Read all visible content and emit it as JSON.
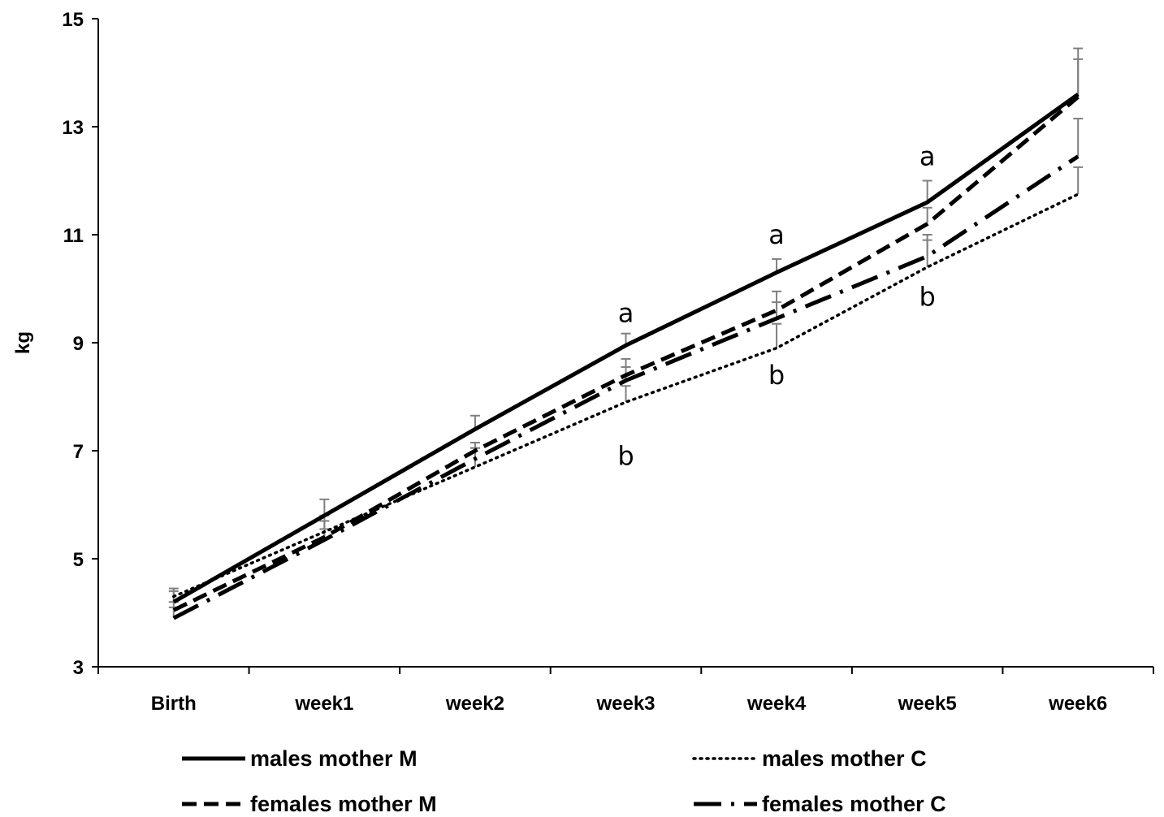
{
  "chart_data": {
    "type": "line",
    "categories": [
      "Birth",
      "week1",
      "week2",
      "week3",
      "week4",
      "week5",
      "week6"
    ],
    "ylabel": "kg",
    "xlabel": "",
    "ylim": [
      3,
      15
    ],
    "yticks": [
      3,
      5,
      7,
      9,
      11,
      13,
      15
    ],
    "grid": false,
    "legend_position": "bottom",
    "series": [
      {
        "name": "males mother M",
        "style": "solid",
        "values": [
          4.2,
          5.8,
          7.4,
          8.95,
          10.3,
          11.6,
          13.6
        ],
        "errors": [
          0.2,
          0.3,
          0.25,
          0.22,
          0.25,
          0.4,
          0.85
        ]
      },
      {
        "name": "males mother C",
        "style": "dotted",
        "values": [
          4.3,
          5.5,
          6.7,
          7.9,
          8.9,
          10.4,
          11.75
        ],
        "errors": [
          0.15,
          0.3,
          0.35,
          0.3,
          0.45,
          0.5,
          0.5
        ]
      },
      {
        "name": "females mother M",
        "style": "dashed",
        "values": [
          4.05,
          5.4,
          7.0,
          8.4,
          9.6,
          11.2,
          13.55
        ],
        "errors": [
          0.15,
          0.3,
          0.15,
          0.3,
          0.35,
          0.3,
          0.7
        ]
      },
      {
        "name": "females mother C",
        "style": "dashdot",
        "values": [
          3.9,
          5.35,
          6.85,
          8.3,
          9.45,
          10.6,
          12.45
        ],
        "errors": [
          0.2,
          0.2,
          0.2,
          0.25,
          0.3,
          0.4,
          0.7
        ]
      }
    ],
    "annotations": [
      {
        "text": "a",
        "category": "week3",
        "y": 9.55
      },
      {
        "text": "b",
        "category": "week3",
        "y": 6.9
      },
      {
        "text": "a",
        "category": "week4",
        "y": 11.0
      },
      {
        "text": "b",
        "category": "week4",
        "y": 8.4
      },
      {
        "text": "a",
        "category": "week5",
        "y": 12.45
      },
      {
        "text": "b",
        "category": "week5",
        "y": 9.85
      }
    ]
  }
}
